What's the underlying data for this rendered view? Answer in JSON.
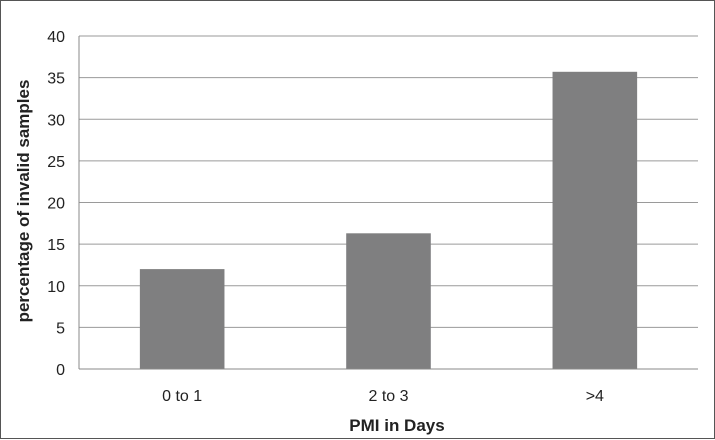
{
  "chart_data": {
    "type": "bar",
    "title": "",
    "xlabel": "PMI in Days",
    "ylabel": "percentage of invalid samples",
    "categories": [
      "0 to 1",
      "2 to 3",
      ">4"
    ],
    "values": [
      12,
      16.3,
      35.7
    ],
    "ylim": [
      0,
      40
    ],
    "yticks": [
      0,
      5,
      10,
      15,
      20,
      25,
      30,
      35,
      40
    ],
    "grid": true,
    "legend": "none",
    "bar_color": "#7f7f80",
    "grid_color": "#9a9a9a"
  }
}
